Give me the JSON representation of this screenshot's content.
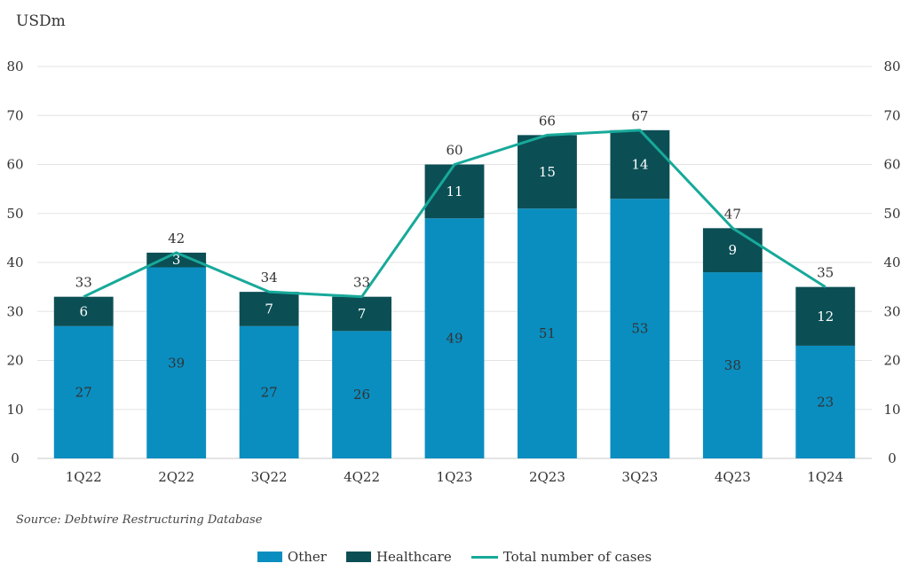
{
  "unit_label": "USDm",
  "source": "Source: Debtwire Restructuring Database",
  "colors": {
    "other": "#0a8ec0",
    "healthcare": "#0b4f55",
    "total": "#17a99a"
  },
  "legend": [
    {
      "key": "other",
      "label": "Other",
      "kind": "bar"
    },
    {
      "key": "healthcare",
      "label": "Healthcare",
      "kind": "bar"
    },
    {
      "key": "total",
      "label": "Total number of cases",
      "kind": "line"
    }
  ],
  "chart_data": {
    "type": "bar",
    "stacked": true,
    "categories": [
      "1Q22",
      "2Q22",
      "3Q22",
      "4Q22",
      "1Q23",
      "2Q23",
      "3Q23",
      "4Q23",
      "1Q24"
    ],
    "series": [
      {
        "name": "Other",
        "values": [
          27,
          39,
          27,
          26,
          49,
          51,
          53,
          38,
          23
        ]
      },
      {
        "name": "Healthcare",
        "values": [
          6,
          3,
          7,
          7,
          11,
          15,
          14,
          9,
          12
        ]
      }
    ],
    "line_series": {
      "name": "Total number of cases",
      "values": [
        33,
        42,
        34,
        33,
        60,
        66,
        67,
        47,
        35
      ]
    },
    "ylim": [
      0,
      80
    ],
    "yticks": [
      0,
      10,
      20,
      30,
      40,
      50,
      60,
      70,
      80
    ],
    "secondary_ylim": [
      0,
      80
    ],
    "grid": true,
    "legend_position": "bottom"
  }
}
